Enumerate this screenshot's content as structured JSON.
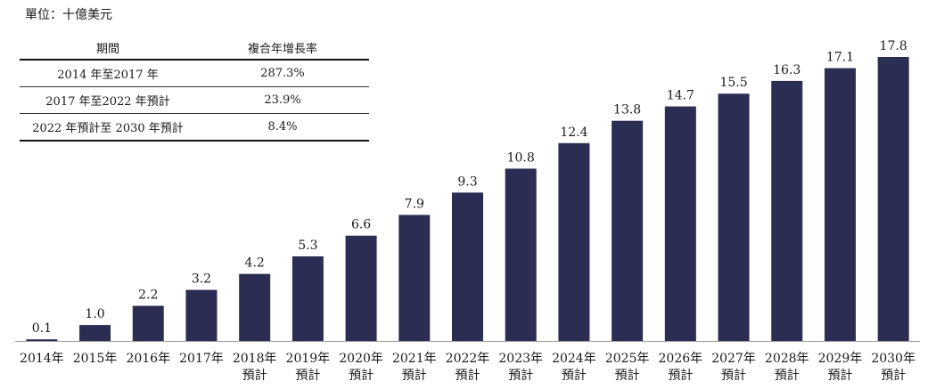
{
  "unit_label": "單位：十億美元",
  "cagr_table": {
    "headers": [
      "期間",
      "複合年增長率"
    ],
    "rows": [
      [
        "2014 年至2017 年",
        "287.3%"
      ],
      [
        "2017 年至2022 年預計",
        "23.9%"
      ],
      [
        "2022 年預計至 2030 年預計",
        "8.4%"
      ]
    ]
  },
  "colors": {
    "bar": "#2b2d52",
    "axis": "#999999"
  },
  "chart_data": {
    "type": "bar",
    "categories": [
      "2014年",
      "2015年",
      "2016年",
      "2017年",
      "2018年 預計",
      "2019年 預計",
      "2020年 預計",
      "2021年 預計",
      "2022年 預計",
      "2023年 預計",
      "2024年 預計",
      "2025年 預計",
      "2026年 預計",
      "2027年 預計",
      "2028年 預計",
      "2029年 預計",
      "2030年 預計"
    ],
    "category_lines": [
      [
        "2014年"
      ],
      [
        "2015年"
      ],
      [
        "2016年"
      ],
      [
        "2017年"
      ],
      [
        "2018年",
        "預計"
      ],
      [
        "2019年",
        "預計"
      ],
      [
        "2020年",
        "預計"
      ],
      [
        "2021年",
        "預計"
      ],
      [
        "2022年",
        "預計"
      ],
      [
        "2023年",
        "預計"
      ],
      [
        "2024年",
        "預計"
      ],
      [
        "2025年",
        "預計"
      ],
      [
        "2026年",
        "預計"
      ],
      [
        "2027年",
        "預計"
      ],
      [
        "2028年",
        "預計"
      ],
      [
        "2029年",
        "預計"
      ],
      [
        "2030年",
        "預計"
      ]
    ],
    "values": [
      0.1,
      1.0,
      2.2,
      3.2,
      4.2,
      5.3,
      6.6,
      7.9,
      9.3,
      10.8,
      12.4,
      13.8,
      14.7,
      15.5,
      16.3,
      17.1,
      17.8
    ],
    "data_labels": [
      "0.1",
      "1.0",
      "2.2",
      "3.2",
      "4.2",
      "5.3",
      "6.6",
      "7.9",
      "9.3",
      "10.8",
      "12.4",
      "13.8",
      "14.7",
      "15.5",
      "16.3",
      "17.1",
      "17.8"
    ],
    "ylim": [
      0,
      17.8
    ],
    "grid": false,
    "legend": "none"
  }
}
